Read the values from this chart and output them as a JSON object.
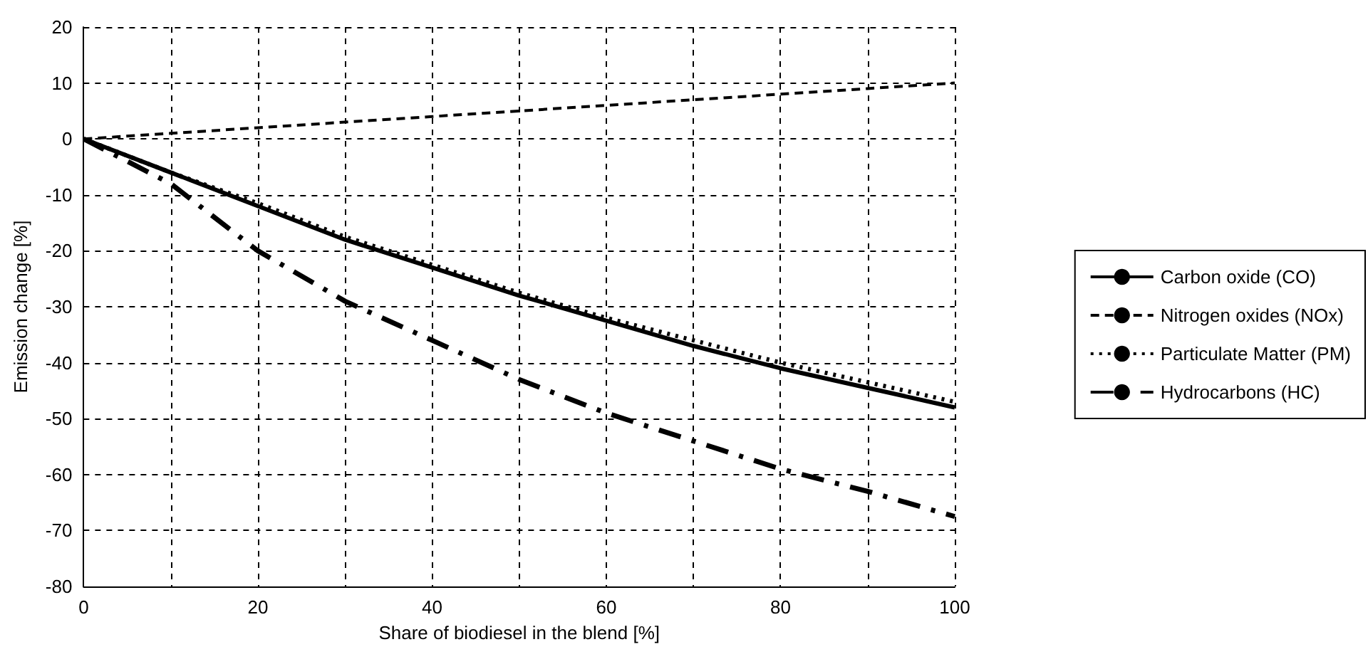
{
  "chart_data": {
    "type": "line",
    "xlabel": "Share of biodiesel in the blend [%]",
    "ylabel": "Emission change [%]",
    "x": [
      0,
      10,
      20,
      30,
      40,
      50,
      60,
      70,
      80,
      90,
      100
    ],
    "series": [
      {
        "name": "Carbon oxide (CO)",
        "color": "#000000",
        "line_style": "solid",
        "values": [
          0,
          -6,
          -12,
          -18,
          -23,
          -28,
          -32.5,
          -37,
          -41,
          -44.5,
          -48
        ]
      },
      {
        "name": "Nitrogen oxides (NOx)",
        "color": "#000000",
        "line_style": "dashed",
        "values": [
          0,
          1,
          2,
          3,
          4,
          5,
          6,
          7,
          8,
          9,
          10
        ]
      },
      {
        "name": "Particulate Matter (PM)",
        "color": "#000000",
        "line_style": "dotted",
        "values": [
          0,
          -6,
          -11.5,
          -17.5,
          -22.5,
          -27.5,
          -32,
          -36,
          -40,
          -43.5,
          -47
        ]
      },
      {
        "name": "Hydrocarbons (HC)",
        "color": "#000000",
        "line_style": "dashdot",
        "values": [
          0,
          -8,
          -20,
          -29,
          -36,
          -43,
          -49,
          -54,
          -59,
          -63,
          -67.5
        ]
      }
    ],
    "xlim": [
      0,
      100
    ],
    "xticks": [
      0,
      20,
      40,
      60,
      80,
      100
    ],
    "ylim": [
      -80,
      20
    ],
    "yticks": [
      -80,
      -70,
      -60,
      -50,
      -40,
      -30,
      -20,
      -10,
      0,
      10,
      20
    ],
    "grid": true,
    "legend": "right",
    "marker": "none"
  }
}
